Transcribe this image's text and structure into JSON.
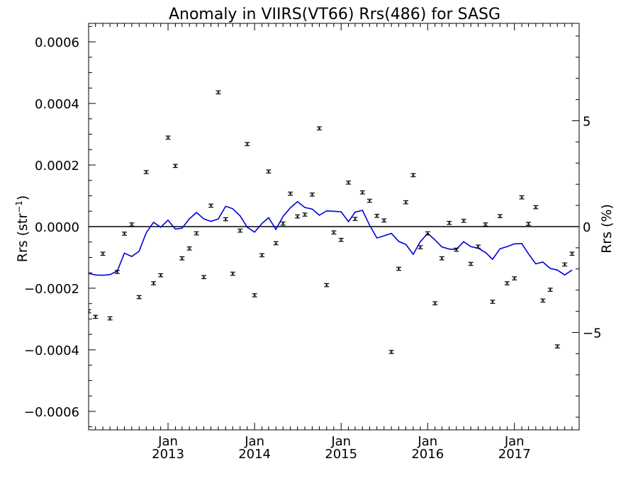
{
  "chart_data": {
    "type": "scatter",
    "title": "Anomaly in VIIRS(VT66) Rrs(486) for SASG",
    "ylabel_left": {
      "base": "Rrs (str",
      "sup": "−1",
      "tail": ")"
    },
    "ylabel_right": "Rrs (%)",
    "x_axis": {
      "range": [
        "2012-02-01",
        "2017-10-01"
      ],
      "tick_labels": [
        {
          "month": "Jan",
          "year": "2013",
          "date": "2013-01-01"
        },
        {
          "month": "Jan",
          "year": "2014",
          "date": "2014-01-01"
        },
        {
          "month": "Jan",
          "year": "2015",
          "date": "2015-01-01"
        },
        {
          "month": "Jan",
          "year": "2016",
          "date": "2016-01-01"
        },
        {
          "month": "Jan",
          "year": "2017",
          "date": "2017-01-01"
        }
      ]
    },
    "y_left": {
      "range": [
        -0.00066,
        0.00066
      ],
      "ticks": [
        -0.0006,
        -0.0004,
        -0.0002,
        0.0,
        0.0002,
        0.0004,
        0.0006
      ],
      "tick_labels": [
        "−0.0006",
        "−0.0004",
        "−0.0002",
        "0.0000",
        "0.0002",
        "0.0004",
        "0.0006"
      ]
    },
    "y_right": {
      "range": [
        -9.6,
        9.6
      ],
      "ticks": [
        -5,
        0,
        5
      ],
      "tick_labels": [
        "−5",
        "0",
        "5"
      ]
    },
    "reference_line": 0,
    "series": [
      {
        "kind": "points_with_error_bars",
        "axis": "left",
        "color": "#000000",
        "points": [
          [
            "2012-02-01",
            -0.000275
          ],
          [
            "2012-03-01",
            -0.000293
          ],
          [
            "2012-04-01",
            -8.8e-05
          ],
          [
            "2012-05-01",
            -0.000298
          ],
          [
            "2012-06-01",
            -0.000147
          ],
          [
            "2012-07-01",
            -2.3e-05
          ],
          [
            "2012-08-01",
            7e-06
          ],
          [
            "2012-09-01",
            -0.000229
          ],
          [
            "2012-10-01",
            0.000177
          ],
          [
            "2012-11-01",
            -0.000184
          ],
          [
            "2012-12-01",
            -0.000158
          ],
          [
            "2013-01-01",
            0.000289
          ],
          [
            "2013-02-01",
            0.000197
          ],
          [
            "2013-03-01",
            -0.000103
          ],
          [
            "2013-04-01",
            -7.1e-05
          ],
          [
            "2013-05-01",
            -2.2e-05
          ],
          [
            "2013-06-01",
            -0.000164
          ],
          [
            "2013-07-01",
            6.8e-05
          ],
          [
            "2013-08-01",
            0.000436
          ],
          [
            "2013-09-01",
            2.4e-05
          ],
          [
            "2013-10-01",
            -0.000153
          ],
          [
            "2013-11-01",
            -1.3e-05
          ],
          [
            "2013-12-01",
            0.000268
          ],
          [
            "2014-01-01",
            -0.000223
          ],
          [
            "2014-02-01",
            -9.3e-05
          ],
          [
            "2014-03-01",
            0.000179
          ],
          [
            "2014-04-01",
            -5.4e-05
          ],
          [
            "2014-05-01",
            1e-05
          ],
          [
            "2014-06-01",
            0.000107
          ],
          [
            "2014-07-01",
            3.3e-05
          ],
          [
            "2014-08-01",
            3.9e-05
          ],
          [
            "2014-09-01",
            0.000104
          ],
          [
            "2014-10-01",
            0.000319
          ],
          [
            "2014-11-01",
            -0.00019
          ],
          [
            "2014-12-01",
            -1.9e-05
          ],
          [
            "2015-01-01",
            -4.3e-05
          ],
          [
            "2015-02-01",
            0.000143
          ],
          [
            "2015-03-01",
            2.5e-05
          ],
          [
            "2015-04-01",
            0.000111
          ],
          [
            "2015-05-01",
            8.4e-05
          ],
          [
            "2015-06-01",
            3.5e-05
          ],
          [
            "2015-07-01",
            2e-05
          ],
          [
            "2015-08-01",
            -0.000407
          ],
          [
            "2015-09-01",
            -0.000137
          ],
          [
            "2015-10-01",
            7.9e-05
          ],
          [
            "2015-11-01",
            0.000167
          ],
          [
            "2015-12-01",
            -6.7e-05
          ],
          [
            "2016-01-01",
            -2.2e-05
          ],
          [
            "2016-02-01",
            -0.000249
          ],
          [
            "2016-03-01",
            -0.000103
          ],
          [
            "2016-04-01",
            1.2e-05
          ],
          [
            "2016-05-01",
            -7.5e-05
          ],
          [
            "2016-06-01",
            1.9e-05
          ],
          [
            "2016-07-01",
            -0.000121
          ],
          [
            "2016-08-01",
            -6.5e-05
          ],
          [
            "2016-09-01",
            7e-06
          ],
          [
            "2016-10-01",
            -0.000244
          ],
          [
            "2016-11-01",
            3.4e-05
          ],
          [
            "2016-12-01",
            -0.000184
          ],
          [
            "2017-01-01",
            -0.000168
          ],
          [
            "2017-02-01",
            9.5e-05
          ],
          [
            "2017-03-01",
            9e-06
          ],
          [
            "2017-04-01",
            6.3e-05
          ],
          [
            "2017-05-01",
            -0.00024
          ],
          [
            "2017-06-01",
            -0.000205
          ],
          [
            "2017-07-01",
            -0.000389
          ],
          [
            "2017-08-01",
            -0.000123
          ],
          [
            "2017-09-01",
            -8.8e-05
          ]
        ]
      },
      {
        "kind": "line",
        "axis": "left",
        "color": "#0000dd",
        "points": [
          [
            "2012-02-01",
            -0.000152
          ],
          [
            "2012-03-01",
            -0.000157
          ],
          [
            "2012-04-01",
            -0.000158
          ],
          [
            "2012-05-01",
            -0.000156
          ],
          [
            "2012-06-01",
            -0.000144
          ],
          [
            "2012-07-01",
            -8.6e-05
          ],
          [
            "2012-08-01",
            -9.7e-05
          ],
          [
            "2012-09-01",
            -8e-05
          ],
          [
            "2012-10-01",
            -2e-05
          ],
          [
            "2012-11-01",
            1.4e-05
          ],
          [
            "2012-12-01",
            -2e-06
          ],
          [
            "2013-01-01",
            2.1e-05
          ],
          [
            "2013-02-01",
            -8e-06
          ],
          [
            "2013-03-01",
            -5e-06
          ],
          [
            "2013-04-01",
            2.5e-05
          ],
          [
            "2013-05-01",
            4.6e-05
          ],
          [
            "2013-06-01",
            2.5e-05
          ],
          [
            "2013-07-01",
            1.7e-05
          ],
          [
            "2013-08-01",
            2.5e-05
          ],
          [
            "2013-09-01",
            6.6e-05
          ],
          [
            "2013-10-01",
            5.8e-05
          ],
          [
            "2013-11-01",
            3.5e-05
          ],
          [
            "2013-12-01",
            -2e-06
          ],
          [
            "2014-01-01",
            -1.8e-05
          ],
          [
            "2014-02-01",
            1e-05
          ],
          [
            "2014-03-01",
            2.9e-05
          ],
          [
            "2014-04-01",
            -9e-06
          ],
          [
            "2014-05-01",
            3.3e-05
          ],
          [
            "2014-06-01",
            6.1e-05
          ],
          [
            "2014-07-01",
            8.1e-05
          ],
          [
            "2014-08-01",
            6.2e-05
          ],
          [
            "2014-09-01",
            5.7e-05
          ],
          [
            "2014-10-01",
            3.7e-05
          ],
          [
            "2014-11-01",
            5.1e-05
          ],
          [
            "2014-12-01",
            5e-05
          ],
          [
            "2015-01-01",
            4.8e-05
          ],
          [
            "2015-02-01",
            1.6e-05
          ],
          [
            "2015-03-01",
            4.7e-05
          ],
          [
            "2015-04-01",
            5.3e-05
          ],
          [
            "2015-05-01",
            5e-06
          ],
          [
            "2015-06-01",
            -3.7e-05
          ],
          [
            "2015-07-01",
            -3e-05
          ],
          [
            "2015-08-01",
            -2.2e-05
          ],
          [
            "2015-09-01",
            -4.8e-05
          ],
          [
            "2015-10-01",
            -5.8e-05
          ],
          [
            "2015-11-01",
            -9e-05
          ],
          [
            "2015-12-01",
            -4.9e-05
          ],
          [
            "2016-01-01",
            -2.2e-05
          ],
          [
            "2016-02-01",
            -4.3e-05
          ],
          [
            "2016-03-01",
            -6.6e-05
          ],
          [
            "2016-04-01",
            -7.3e-05
          ],
          [
            "2016-05-01",
            -7.4e-05
          ],
          [
            "2016-06-01",
            -4.9e-05
          ],
          [
            "2016-07-01",
            -6.5e-05
          ],
          [
            "2016-08-01",
            -7e-05
          ],
          [
            "2016-09-01",
            -8.4e-05
          ],
          [
            "2016-10-01",
            -0.000106
          ],
          [
            "2016-11-01",
            -7.2e-05
          ],
          [
            "2016-12-01",
            -6.5e-05
          ],
          [
            "2017-01-01",
            -5.6e-05
          ],
          [
            "2017-02-01",
            -5.5e-05
          ],
          [
            "2017-03-01",
            -8.8e-05
          ],
          [
            "2017-04-01",
            -0.000121
          ],
          [
            "2017-05-01",
            -0.000115
          ],
          [
            "2017-06-01",
            -0.000136
          ],
          [
            "2017-07-01",
            -0.000141
          ],
          [
            "2017-08-01",
            -0.000157
          ],
          [
            "2017-09-01",
            -0.000141
          ]
        ]
      }
    ],
    "grid": false,
    "legend": "none"
  }
}
